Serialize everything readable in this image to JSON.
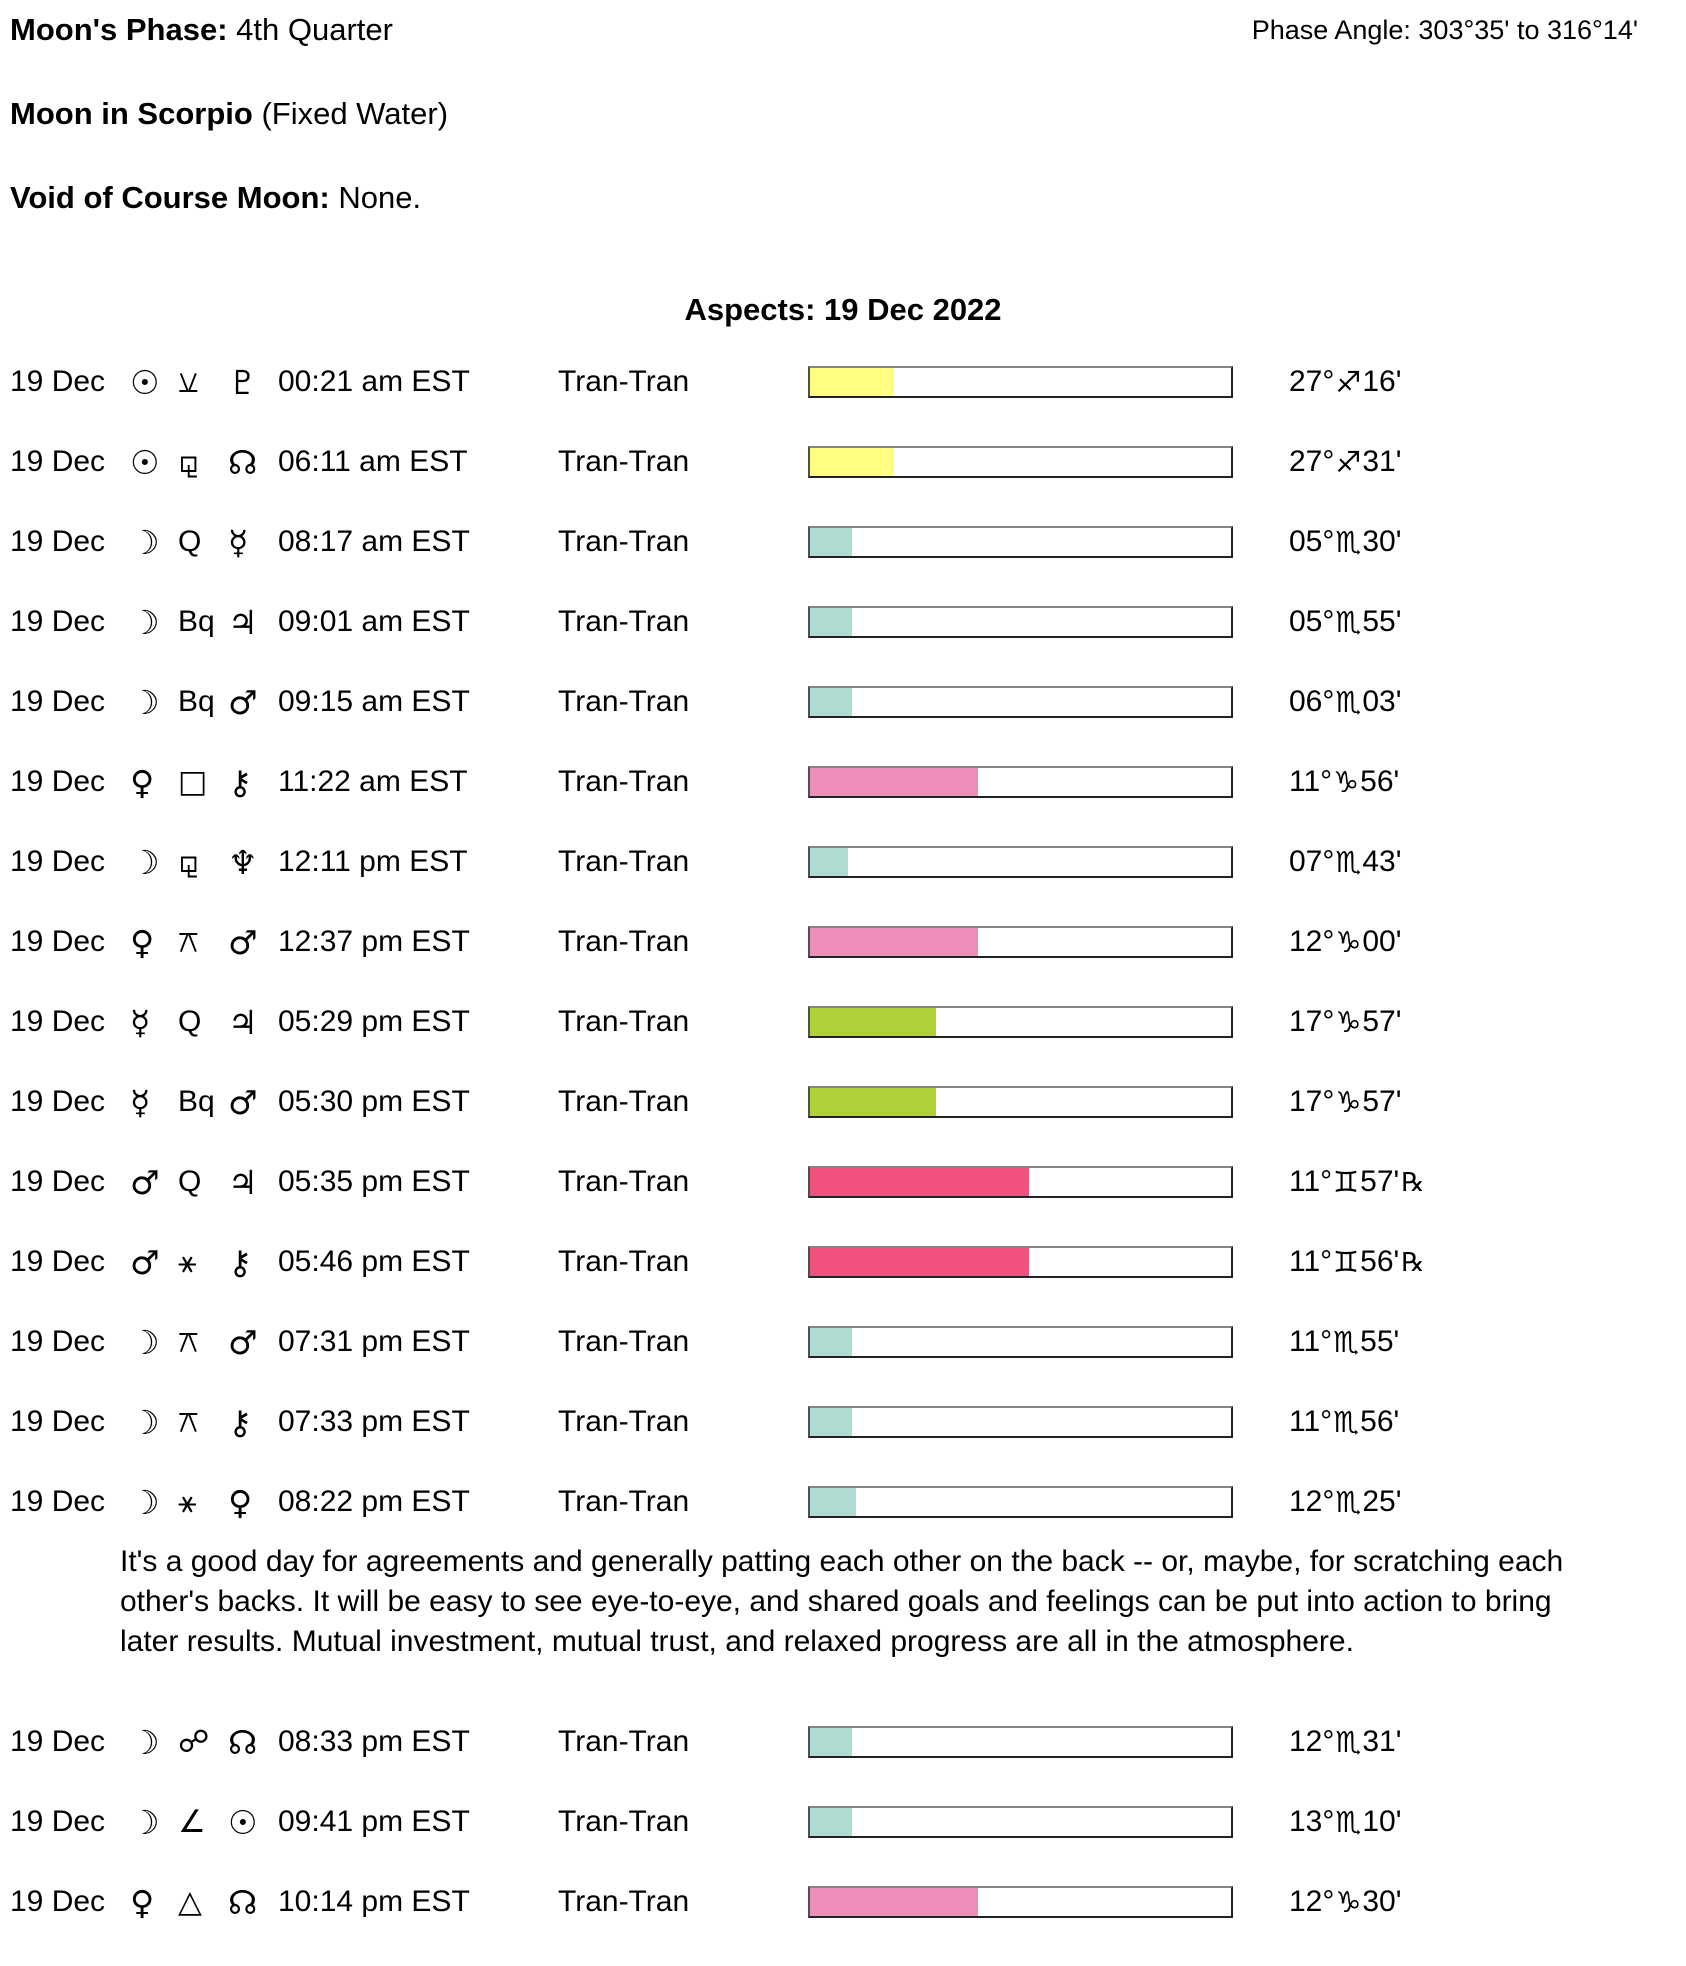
{
  "header": {
    "moons_phase_label": "Moon's Phase:",
    "moons_phase_value": "4th Quarter",
    "phase_angle_label": "Phase Angle:",
    "phase_angle_value": "303°35' to 316°14'",
    "moon_in_label": "Moon in Scorpio",
    "moon_in_value": "(Fixed Water)",
    "voc_label": "Void of Course Moon:",
    "voc_value": "None."
  },
  "aspects": {
    "title": "Aspects: 19 Dec 2022",
    "bar_colors": {
      "sun": "#ffff80",
      "moon": "#aedbd2",
      "venus": "#ee8cba",
      "mercury": "#afd137",
      "mars": "#f0517f"
    },
    "rows": [
      {
        "date": "19 Dec",
        "p1": {
          "symbol": "☉",
          "name": "sun"
        },
        "aspect": {
          "symbol": "⚺",
          "name": "semisextile"
        },
        "p2": {
          "symbol": "♇",
          "name": "pluto"
        },
        "time": "00:21 am EST",
        "type": "Tran-Tran",
        "bar": {
          "color": "#ffff80",
          "pct": 20
        },
        "pos": {
          "deg": "27°",
          "sign": "♐",
          "sign_name": "sagittarius",
          "min": "16'",
          "retrograde": false
        }
      },
      {
        "date": "19 Dec",
        "p1": {
          "symbol": "☉",
          "name": "sun"
        },
        "aspect": {
          "symbol": "⚼",
          "name": "sesquiquadrate"
        },
        "p2": {
          "symbol": "☊",
          "name": "north-node"
        },
        "time": "06:11 am EST",
        "type": "Tran-Tran",
        "bar": {
          "color": "#ffff80",
          "pct": 20
        },
        "pos": {
          "deg": "27°",
          "sign": "♐",
          "sign_name": "sagittarius",
          "min": "31'",
          "retrograde": false
        }
      },
      {
        "date": "19 Dec",
        "p1": {
          "symbol": "☽",
          "name": "moon"
        },
        "aspect": {
          "symbol": "Q",
          "name": "quintile"
        },
        "p2": {
          "symbol": "☿",
          "name": "mercury"
        },
        "time": "08:17 am EST",
        "type": "Tran-Tran",
        "bar": {
          "color": "#aedbd2",
          "pct": 10
        },
        "pos": {
          "deg": "05°",
          "sign": "♏",
          "sign_name": "scorpio",
          "min": "30'",
          "retrograde": false
        }
      },
      {
        "date": "19 Dec",
        "p1": {
          "symbol": "☽",
          "name": "moon"
        },
        "aspect": {
          "symbol": "Bq",
          "name": "biquintile"
        },
        "p2": {
          "symbol": "♃",
          "name": "jupiter"
        },
        "time": "09:01 am EST",
        "type": "Tran-Tran",
        "bar": {
          "color": "#aedbd2",
          "pct": 10
        },
        "pos": {
          "deg": "05°",
          "sign": "♏",
          "sign_name": "scorpio",
          "min": "55'",
          "retrograde": false
        }
      },
      {
        "date": "19 Dec",
        "p1": {
          "symbol": "☽",
          "name": "moon"
        },
        "aspect": {
          "symbol": "Bq",
          "name": "biquintile"
        },
        "p2": {
          "symbol": "♂",
          "name": "mars"
        },
        "time": "09:15 am EST",
        "type": "Tran-Tran",
        "bar": {
          "color": "#aedbd2",
          "pct": 10
        },
        "pos": {
          "deg": "06°",
          "sign": "♏",
          "sign_name": "scorpio",
          "min": "03'",
          "retrograde": false
        }
      },
      {
        "date": "19 Dec",
        "p1": {
          "symbol": "♀",
          "name": "venus"
        },
        "aspect": {
          "symbol": "□",
          "name": "square"
        },
        "p2": {
          "symbol": "⚷",
          "name": "chiron"
        },
        "time": "11:22 am EST",
        "type": "Tran-Tran",
        "bar": {
          "color": "#ee8cba",
          "pct": 40
        },
        "pos": {
          "deg": "11°",
          "sign": "♑",
          "sign_name": "capricorn",
          "min": "56'",
          "retrograde": false
        }
      },
      {
        "date": "19 Dec",
        "p1": {
          "symbol": "☽",
          "name": "moon"
        },
        "aspect": {
          "symbol": "⚼",
          "name": "sesquiquadrate"
        },
        "p2": {
          "symbol": "♆",
          "name": "neptune"
        },
        "time": "12:11 pm EST",
        "type": "Tran-Tran",
        "bar": {
          "color": "#aedbd2",
          "pct": 9
        },
        "pos": {
          "deg": "07°",
          "sign": "♏",
          "sign_name": "scorpio",
          "min": "43'",
          "retrograde": false
        }
      },
      {
        "date": "19 Dec",
        "p1": {
          "symbol": "♀",
          "name": "venus"
        },
        "aspect": {
          "symbol": "⚻",
          "name": "quincunx"
        },
        "p2": {
          "symbol": "♂",
          "name": "mars"
        },
        "time": "12:37 pm EST",
        "type": "Tran-Tran",
        "bar": {
          "color": "#ee8cba",
          "pct": 40
        },
        "pos": {
          "deg": "12°",
          "sign": "♑",
          "sign_name": "capricorn",
          "min": "00'",
          "retrograde": false
        }
      },
      {
        "date": "19 Dec",
        "p1": {
          "symbol": "☿",
          "name": "mercury"
        },
        "aspect": {
          "symbol": "Q",
          "name": "quintile"
        },
        "p2": {
          "symbol": "♃",
          "name": "jupiter"
        },
        "time": "05:29 pm EST",
        "type": "Tran-Tran",
        "bar": {
          "color": "#afd137",
          "pct": 30
        },
        "pos": {
          "deg": "17°",
          "sign": "♑",
          "sign_name": "capricorn",
          "min": "57'",
          "retrograde": false
        }
      },
      {
        "date": "19 Dec",
        "p1": {
          "symbol": "☿",
          "name": "mercury"
        },
        "aspect": {
          "symbol": "Bq",
          "name": "biquintile"
        },
        "p2": {
          "symbol": "♂",
          "name": "mars"
        },
        "time": "05:30 pm EST",
        "type": "Tran-Tran",
        "bar": {
          "color": "#afd137",
          "pct": 30
        },
        "pos": {
          "deg": "17°",
          "sign": "♑",
          "sign_name": "capricorn",
          "min": "57'",
          "retrograde": false
        }
      },
      {
        "date": "19 Dec",
        "p1": {
          "symbol": "♂",
          "name": "mars"
        },
        "aspect": {
          "symbol": "Q",
          "name": "quintile"
        },
        "p2": {
          "symbol": "♃",
          "name": "jupiter"
        },
        "time": "05:35 pm EST",
        "type": "Tran-Tran",
        "bar": {
          "color": "#f0517f",
          "pct": 52
        },
        "pos": {
          "deg": "11°",
          "sign": "♊",
          "sign_name": "gemini",
          "min": "57'",
          "retrograde": true
        }
      },
      {
        "date": "19 Dec",
        "p1": {
          "symbol": "♂",
          "name": "mars"
        },
        "aspect": {
          "symbol": "⚹",
          "name": "sextile"
        },
        "p2": {
          "symbol": "⚷",
          "name": "chiron"
        },
        "time": "05:46 pm EST",
        "type": "Tran-Tran",
        "bar": {
          "color": "#f0517f",
          "pct": 52
        },
        "pos": {
          "deg": "11°",
          "sign": "♊",
          "sign_name": "gemini",
          "min": "56'",
          "retrograde": true
        }
      },
      {
        "date": "19 Dec",
        "p1": {
          "symbol": "☽",
          "name": "moon"
        },
        "aspect": {
          "symbol": "⚻",
          "name": "quincunx"
        },
        "p2": {
          "symbol": "♂",
          "name": "mars"
        },
        "time": "07:31 pm EST",
        "type": "Tran-Tran",
        "bar": {
          "color": "#aedbd2",
          "pct": 10
        },
        "pos": {
          "deg": "11°",
          "sign": "♏",
          "sign_name": "scorpio",
          "min": "55'",
          "retrograde": false
        }
      },
      {
        "date": "19 Dec",
        "p1": {
          "symbol": "☽",
          "name": "moon"
        },
        "aspect": {
          "symbol": "⚻",
          "name": "quincunx"
        },
        "p2": {
          "symbol": "⚷",
          "name": "chiron"
        },
        "time": "07:33 pm EST",
        "type": "Tran-Tran",
        "bar": {
          "color": "#aedbd2",
          "pct": 10
        },
        "pos": {
          "deg": "11°",
          "sign": "♏",
          "sign_name": "scorpio",
          "min": "56'",
          "retrograde": false
        }
      },
      {
        "date": "19 Dec",
        "p1": {
          "symbol": "☽",
          "name": "moon"
        },
        "aspect": {
          "symbol": "⚹",
          "name": "sextile"
        },
        "p2": {
          "symbol": "♀",
          "name": "venus"
        },
        "time": "08:22 pm EST",
        "type": "Tran-Tran",
        "bar": {
          "color": "#aedbd2",
          "pct": 11
        },
        "pos": {
          "deg": "12°",
          "sign": "♏",
          "sign_name": "scorpio",
          "min": "25'",
          "retrograde": false
        },
        "note_after": true
      },
      {
        "date": "19 Dec",
        "p1": {
          "symbol": "☽",
          "name": "moon"
        },
        "aspect": {
          "symbol": "☍",
          "name": "opposition"
        },
        "p2": {
          "symbol": "☊",
          "name": "north-node"
        },
        "time": "08:33 pm EST",
        "type": "Tran-Tran",
        "bar": {
          "color": "#aedbd2",
          "pct": 10
        },
        "pos": {
          "deg": "12°",
          "sign": "♏",
          "sign_name": "scorpio",
          "min": "31'",
          "retrograde": false
        }
      },
      {
        "date": "19 Dec",
        "p1": {
          "symbol": "☽",
          "name": "moon"
        },
        "aspect": {
          "symbol": "∠",
          "name": "semisquare"
        },
        "p2": {
          "symbol": "☉",
          "name": "sun"
        },
        "time": "09:41 pm EST",
        "type": "Tran-Tran",
        "bar": {
          "color": "#aedbd2",
          "pct": 10
        },
        "pos": {
          "deg": "13°",
          "sign": "♏",
          "sign_name": "scorpio",
          "min": "10'",
          "retrograde": false
        }
      },
      {
        "date": "19 Dec",
        "p1": {
          "symbol": "♀",
          "name": "venus"
        },
        "aspect": {
          "symbol": "△",
          "name": "trine"
        },
        "p2": {
          "symbol": "☊",
          "name": "north-node"
        },
        "time": "10:14 pm EST",
        "type": "Tran-Tran",
        "bar": {
          "color": "#ee8cba",
          "pct": 40
        },
        "pos": {
          "deg": "12°",
          "sign": "♑",
          "sign_name": "capricorn",
          "min": "30'",
          "retrograde": false
        }
      }
    ]
  },
  "interpretation": "It's a good day for agreements and generally patting each other on the back -- or, maybe, for scratching each other's backs. It will be easy to see eye-to-eye, and shared goals and feelings can be put into action to bring later results. Mutual investment, mutual trust, and relaxed progress are all in the atmosphere."
}
